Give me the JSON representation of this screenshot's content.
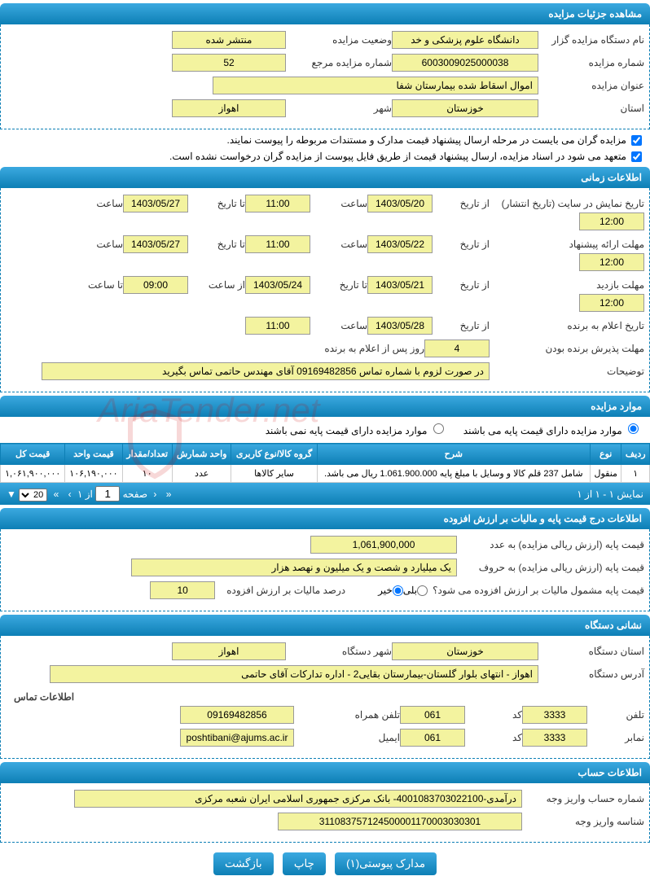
{
  "sections": {
    "details": "مشاهده جزئیات مزایده",
    "timing": "اطلاعات زمانی",
    "items": "موارد مزایده",
    "pricing": "اطلاعات درج قیمت پایه و مالیات بر ارزش افزوده",
    "org": "نشانی دستگاه",
    "account": "اطلاعات حساب"
  },
  "details": {
    "org_label": "نام دستگاه مزایده گزار",
    "org_value": "دانشگاه علوم پزشکی و خد",
    "status_label": "وضعیت مزایده",
    "status_value": "منتشر شده",
    "auction_no_label": "شماره مزایده",
    "auction_no_value": "6003009025000038",
    "ref_no_label": "شماره مزایده مرجع",
    "ref_no_value": "52",
    "title_label": "عنوان مزایده",
    "title_value": "اموال اسقاط شده بیمارستان شفا",
    "province_label": "استان",
    "province_value": "خوزستان",
    "city_label": "شهر",
    "city_value": "اهواز",
    "check1": "مزایده گران می بایست در مرحله ارسال پیشنهاد قیمت مدارک و مستندات مربوطه را پیوست نمایند.",
    "check2": "متعهد می شود در اسناد مزایده، ارسال پیشنهاد قیمت از طریق فایل پیوست از مزایده گران درخواست نشده است."
  },
  "timing": {
    "publish_label": "تاریخ نمایش در سایت (تاریخ انتشار)",
    "from": "از تاریخ",
    "to": "تا تاریخ",
    "hour": "ساعت",
    "to_hour": "تا ساعت",
    "from_hour": "از ساعت",
    "publish_from": "1403/05/20",
    "publish_from_h": "11:00",
    "publish_to": "1403/05/27",
    "publish_to_h": "12:00",
    "deadline_label": "مهلت ارائه پیشنهاد",
    "deadline_from": "1403/05/22",
    "deadline_from_h": "11:00",
    "deadline_to": "1403/05/27",
    "deadline_to_h": "12:00",
    "visit_label": "مهلت بازدید",
    "visit_from": "1403/05/21",
    "visit_to": "1403/05/24",
    "visit_from_h": "09:00",
    "visit_to_h": "12:00",
    "winner_label": "تاریخ اعلام به برنده",
    "winner_date": "1403/05/28",
    "winner_h": "11:00",
    "accept_label": "مهلت پذیرش برنده بودن",
    "accept_days": "4",
    "accept_suffix": "روز پس از اعلام به برنده",
    "notes_label": "توضیحات",
    "notes_value": "در صورت لزوم با شماره تماس 09169482856 آقای مهندس حاتمی تماس بگیرید"
  },
  "items": {
    "radio_has_base": "موارد مزایده دارای قیمت پایه می باشند",
    "radio_no_base": "موارد مزایده دارای قیمت پایه نمی باشند",
    "columns": [
      "ردیف",
      "نوع",
      "شرح",
      "گروه کالا/نوع کاربری",
      "واحد شمارش",
      "تعداد/مقدار",
      "قیمت واحد",
      "قیمت کل"
    ],
    "rows": [
      [
        "۱",
        "منقول",
        "شامل 237 قلم کالا و وسایل با مبلغ پایه 1.061.900.000 ریال می باشد.",
        "سایر کالاها",
        "عدد",
        "۱۰",
        "۱۰۶,۱۹۰,۰۰۰",
        "۱,۰۶۱,۹۰۰,۰۰۰"
      ]
    ],
    "pager_info": "نمایش ۱ - ۱ از ۱",
    "pager_page_label": "صفحه",
    "pager_page": "1",
    "pager_of": "از ۱",
    "pager_size": "20"
  },
  "pricing": {
    "base_num_label": "قیمت پایه (ارزش ریالی مزایده) به عدد",
    "base_num_value": "1,061,900,000",
    "base_text_label": "قیمت پایه (ارزش ریالی مزایده) به حروف",
    "base_text_value": "یک میلیارد و شصت و یک میلیون و نهصد هزار",
    "vat_q": "قیمت پایه مشمول مالیات بر ارزش افزوده می شود؟",
    "yes": "بلی",
    "no": "خیر",
    "vat_pct_label": "درصد مالیات بر ارزش افزوده",
    "vat_pct_value": "10"
  },
  "org": {
    "province_label": "استان دستگاه",
    "province_value": "خوزستان",
    "city_label": "شهر دستگاه",
    "city_value": "اهواز",
    "addr_label": "آدرس دستگاه",
    "addr_value": "اهواز - انتهای بلوار گلستان-بیمارستان بقایی2 - اداره تدارکات آقای حاتمی",
    "contact_header": "اطلاعات تماس",
    "tel_label": "تلفن",
    "tel_value": "3333",
    "code_label": "کد",
    "tel_code": "061",
    "mobile_label": "تلفن همراه",
    "mobile_value": "09169482856",
    "fax_label": "نمابر",
    "fax_value": "3333",
    "fax_code": "061",
    "email_label": "ایمیل",
    "email_value": "poshtibani@ajums.ac.ir"
  },
  "account": {
    "acc_label": "شماره حساب واریز وجه",
    "acc_value": "درآمدی-4001083703022100- بانک مرکزی جمهوری اسلامی ایران شعبه مرکزی",
    "id_label": "شناسه واریز وجه",
    "id_value": "311083757124500001170003030301"
  },
  "buttons": {
    "attach": "مدارک پیوستی(۱)",
    "print": "چاپ",
    "back": "بازگشت"
  },
  "watermark": "AriaTender.net"
}
